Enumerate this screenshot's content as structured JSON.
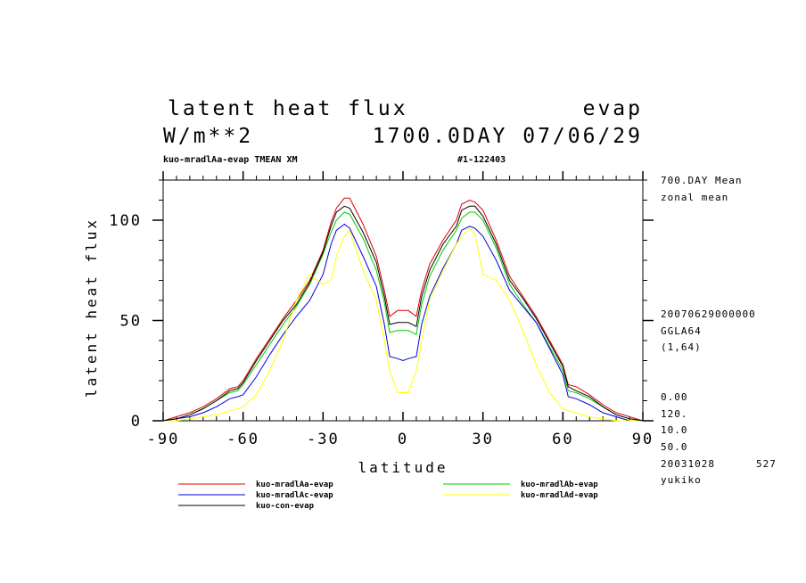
{
  "header": {
    "title_left": "latent heat flux",
    "title_right": "evap",
    "units": "W/m**2",
    "time": "1700.0DAY 07/06/29",
    "sub_left": "kuo-mradlAa-evap TMEAN XM",
    "sub_right": "#1-122403"
  },
  "side": {
    "mean": "700.DAY Mean",
    "zonal": "zonal mean",
    "date": "20070629000000",
    "grid": "GGLA64",
    "index": "(1,64)",
    "v1": "0.00",
    "v2": "120.",
    "v3": "10.0",
    "v4": "50.0",
    "stamp": "20031028",
    "num": "527",
    "user": "yukiko"
  },
  "chart_data": {
    "type": "line",
    "xlabel": "latitude",
    "ylabel": "latent heat flux",
    "xlim": [
      -90,
      90
    ],
    "ylim": [
      0,
      120
    ],
    "xticks": [
      -90,
      -60,
      -30,
      0,
      30,
      60,
      90
    ],
    "xtick_labels": [
      "-90",
      "-60",
      "-30",
      "0",
      "30",
      "60",
      "90"
    ],
    "yticks": [
      0,
      50,
      100
    ],
    "ytick_labels": [
      "0",
      "50",
      "100"
    ],
    "x": [
      -90,
      -85,
      -80,
      -75,
      -70,
      -65,
      -62,
      -60,
      -55,
      -50,
      -45,
      -40,
      -35,
      -30,
      -27,
      -25,
      -22,
      -20,
      -15,
      -10,
      -7,
      -5,
      -2,
      0,
      2,
      5,
      7,
      10,
      15,
      20,
      22,
      25,
      27,
      30,
      35,
      40,
      45,
      50,
      55,
      60,
      62,
      65,
      70,
      75,
      80,
      85,
      90
    ],
    "series": [
      {
        "name": "kuo-mradlAa-evap",
        "color": "#e00000",
        "values": [
          0,
          2,
          4,
          7,
          11,
          16,
          17,
          20,
          31,
          41,
          51,
          60,
          70,
          85,
          99,
          106,
          111,
          111,
          98,
          82,
          65,
          52,
          55,
          55,
          55,
          52,
          65,
          78,
          90,
          100,
          108,
          110,
          109,
          105,
          90,
          72,
          62,
          52,
          40,
          28,
          18,
          17,
          13,
          8,
          4,
          2,
          0
        ]
      },
      {
        "name": "kuo-mradlAb-evap",
        "color": "#00cc00",
        "values": [
          0,
          1,
          3,
          6,
          10,
          14,
          15,
          18,
          28,
          38,
          48,
          57,
          68,
          83,
          94,
          100,
          104,
          103,
          91,
          75,
          59,
          44,
          45,
          45,
          45,
          43,
          58,
          72,
          85,
          95,
          101,
          104,
          104,
          100,
          86,
          68,
          58,
          49,
          37,
          25,
          15,
          14,
          11,
          7,
          3,
          1,
          0
        ]
      },
      {
        "name": "kuo-mradlAc-evap",
        "color": "#0000dd",
        "values": [
          0,
          1,
          2,
          4,
          7,
          11,
          12,
          13,
          22,
          33,
          43,
          52,
          60,
          73,
          88,
          95,
          98,
          96,
          82,
          67,
          48,
          32,
          31,
          30,
          31,
          32,
          48,
          62,
          76,
          88,
          95,
          97,
          96,
          92,
          80,
          65,
          57,
          49,
          36,
          23,
          12,
          11,
          8,
          4,
          2,
          0,
          0
        ]
      },
      {
        "name": "kuo-mradlAd-evap",
        "color": "#ffff00",
        "values": [
          0,
          0,
          1,
          2,
          3,
          5,
          6,
          7,
          13,
          25,
          40,
          60,
          73,
          68,
          70,
          82,
          92,
          95,
          75,
          60,
          40,
          25,
          14,
          14,
          14,
          25,
          40,
          60,
          75,
          88,
          92,
          96,
          93,
          73,
          70,
          60,
          45,
          28,
          14,
          6,
          5,
          4,
          2,
          1,
          0,
          0,
          0
        ]
      },
      {
        "name": "kuo-con-evap",
        "color": "#000000",
        "values": [
          0,
          1,
          3,
          6,
          10,
          15,
          16,
          19,
          30,
          40,
          50,
          58,
          69,
          84,
          97,
          104,
          107,
          106,
          94,
          79,
          62,
          48,
          49,
          49,
          49,
          47,
          62,
          75,
          88,
          97,
          105,
          107,
          107,
          102,
          88,
          70,
          61,
          51,
          39,
          27,
          17,
          15,
          12,
          7,
          3,
          1,
          0
        ]
      }
    ],
    "legend_placement": "bottom"
  }
}
